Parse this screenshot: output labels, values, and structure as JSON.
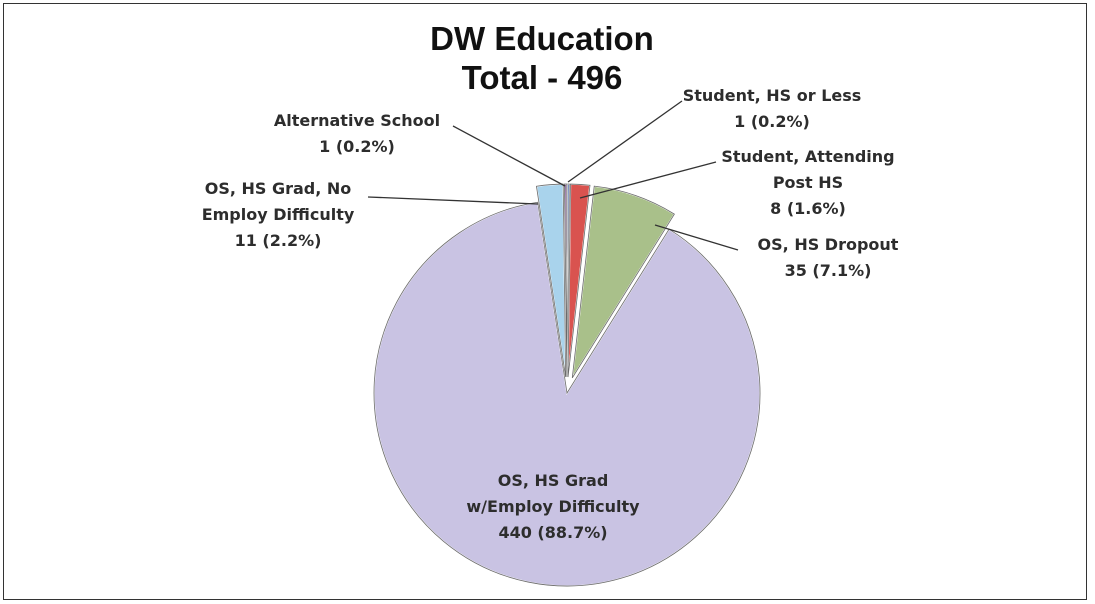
{
  "chart_data": {
    "type": "pie",
    "title": "DW Education",
    "subtitle": "Total - 496",
    "total": 496,
    "slices": [
      {
        "name": "Student, HS or Less",
        "value": 1,
        "percent": "0.2%",
        "color": "#4f6fb0",
        "exploded": true
      },
      {
        "name": "Student, Attending Post HS",
        "value": 8,
        "percent": "1.6%",
        "color": "#d9534f",
        "exploded": true
      },
      {
        "name": "OS, HS Dropout",
        "value": 35,
        "percent": "7.1%",
        "color": "#a9c08a",
        "exploded": true
      },
      {
        "name": "OS, HS Grad w/Employ Difficulty",
        "value": 440,
        "percent": "88.7%",
        "color": "#c9c3e3",
        "exploded": false
      },
      {
        "name": "OS, HS Grad, No Employ Difficulty",
        "value": 11,
        "percent": "2.2%",
        "color": "#a9d3ec",
        "exploded": true
      },
      {
        "name": "Alternative School",
        "value": 1,
        "percent": "0.2%",
        "color": "#7a4a8c",
        "exploded": true
      }
    ],
    "labels": [
      {
        "slice": 0,
        "lines": [
          "Student, HS or Less",
          "1 (0.2%)"
        ]
      },
      {
        "slice": 1,
        "lines": [
          "Student, Attending",
          "Post HS",
          "8 (1.6%)"
        ]
      },
      {
        "slice": 2,
        "lines": [
          "OS, HS Dropout",
          "35 (7.1%)"
        ]
      },
      {
        "slice": 3,
        "lines": [
          "OS, HS Grad",
          "w/Employ Difficulty",
          "440 (88.7%)"
        ]
      },
      {
        "slice": 4,
        "lines": [
          "OS, HS Grad, No",
          "Employ Difficulty",
          "11 (2.2%)"
        ]
      },
      {
        "slice": 5,
        "lines": [
          "Alternative School",
          "1 (0.2%)"
        ]
      }
    ],
    "legend": "none"
  }
}
